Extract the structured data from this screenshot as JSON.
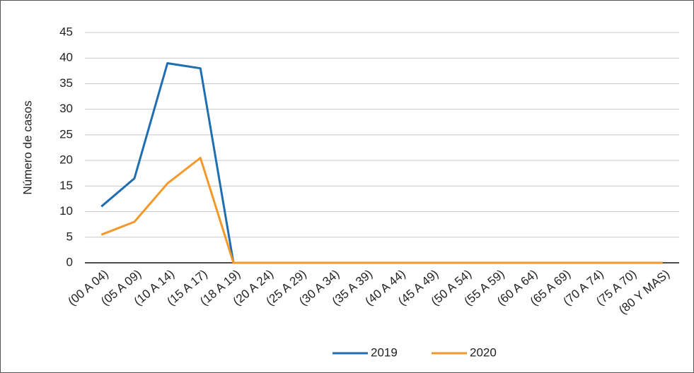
{
  "chart_data": {
    "type": "line",
    "y_label": "Número de casos",
    "categories": [
      "(00 A 04)",
      "(05 A 09)",
      "(10 A 14)",
      "(15 A 17)",
      "(18 A 19)",
      "(20 A 24)",
      "(25 A 29)",
      "(30 A 34)",
      "(35 A 39)",
      "(40 A 44)",
      "(45 A 49)",
      "(50 A 54)",
      "(55 A 59)",
      "(60 A 64)",
      "(65 A 69)",
      "(70 A 74)",
      "(75 A 70)",
      "(80 Y MAS)"
    ],
    "series": [
      {
        "name": "2019",
        "color": "#1f6db3",
        "values": [
          11,
          16.5,
          39,
          38,
          0,
          0,
          0,
          0,
          0,
          0,
          0,
          0,
          0,
          0,
          0,
          0,
          0,
          0
        ]
      },
      {
        "name": "2020",
        "color": "#f5982a",
        "values": [
          5.5,
          8,
          15.5,
          20.5,
          0,
          0,
          0,
          0,
          0,
          0,
          0,
          0,
          0,
          0,
          0,
          0,
          0,
          0
        ]
      }
    ],
    "ylim": [
      0,
      45
    ],
    "yticks": [
      0,
      5,
      10,
      15,
      20,
      25,
      30,
      35,
      40,
      45
    ],
    "grid": true,
    "legend": "bottom"
  }
}
